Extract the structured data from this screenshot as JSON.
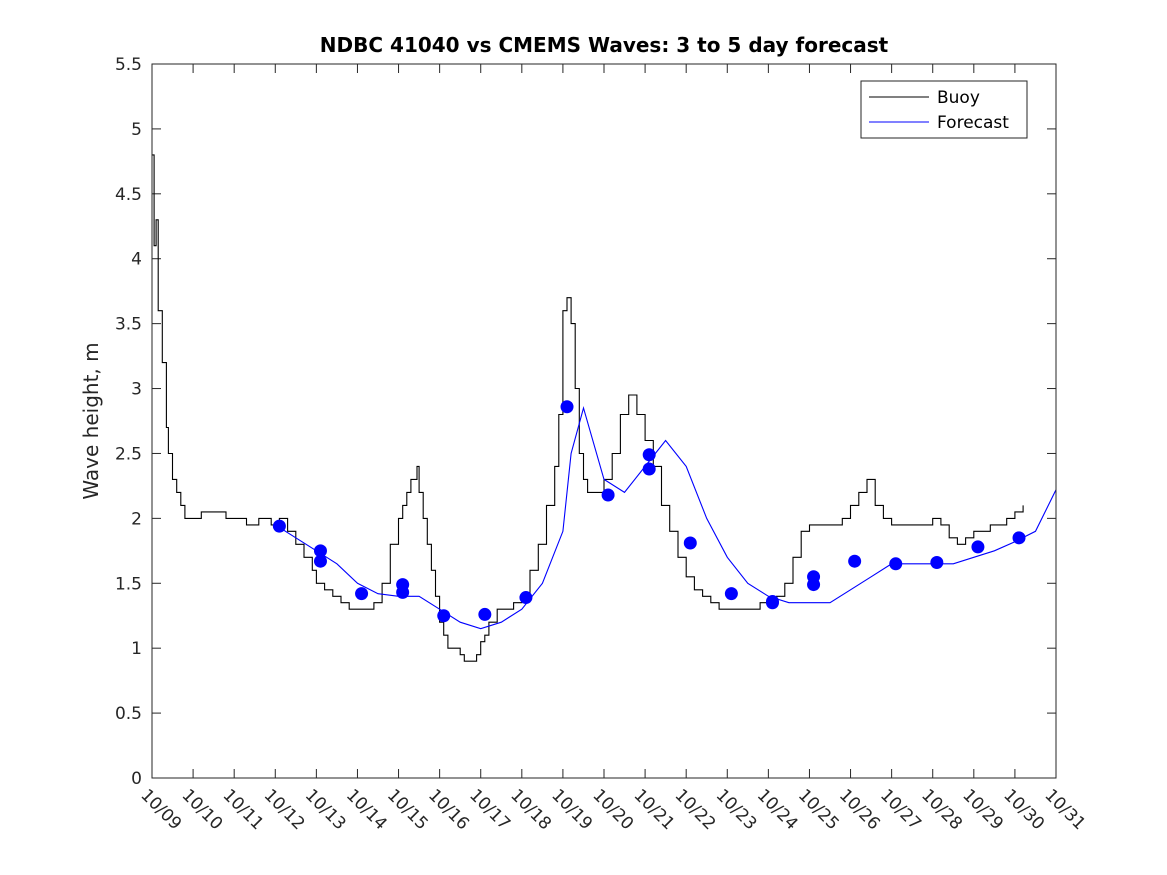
{
  "chart_data": {
    "type": "line",
    "title": "NDBC 41040 vs CMEMS Waves: 3 to 5 day forecast",
    "xlabel": "",
    "ylabel": "Wave height, m",
    "xlim": [
      0,
      22
    ],
    "ylim": [
      0,
      5.5
    ],
    "x_tick_labels": [
      "10/09",
      "10/10",
      "10/11",
      "10/12",
      "10/13",
      "10/14",
      "10/15",
      "10/16",
      "10/17",
      "10/18",
      "10/19",
      "10/20",
      "10/21",
      "10/22",
      "10/23",
      "10/24",
      "10/25",
      "10/26",
      "10/27",
      "10/28",
      "10/29",
      "10/30",
      "10/31"
    ],
    "y_ticks": [
      "0",
      "0.5",
      "1",
      "1.5",
      "2",
      "2.5",
      "3",
      "3.5",
      "4",
      "4.5",
      "5",
      "5.5"
    ],
    "legend": {
      "position": "top-right",
      "entries": [
        {
          "label": "Buoy",
          "color": "#000000"
        },
        {
          "label": "Forecast",
          "color": "#0000ff"
        }
      ]
    },
    "series": [
      {
        "name": "Buoy",
        "color": "#000000",
        "x": [
          0.0,
          0.05,
          0.1,
          0.15,
          0.25,
          0.35,
          0.4,
          0.5,
          0.6,
          0.7,
          0.8,
          1.0,
          1.2,
          1.5,
          1.8,
          2.0,
          2.3,
          2.6,
          2.9,
          3.1,
          3.3,
          3.5,
          3.7,
          3.9,
          4.0,
          4.2,
          4.4,
          4.6,
          4.8,
          5.0,
          5.2,
          5.4,
          5.6,
          5.8,
          6.0,
          6.1,
          6.2,
          6.3,
          6.45,
          6.5,
          6.6,
          6.7,
          6.8,
          6.9,
          7.0,
          7.1,
          7.2,
          7.3,
          7.4,
          7.5,
          7.6,
          7.7,
          7.8,
          7.9,
          8.0,
          8.1,
          8.2,
          8.4,
          8.6,
          8.8,
          9.0,
          9.2,
          9.4,
          9.6,
          9.8,
          9.9,
          10.0,
          10.1,
          10.2,
          10.3,
          10.4,
          10.5,
          10.6,
          10.8,
          11.0,
          11.2,
          11.4,
          11.6,
          11.8,
          12.0,
          12.2,
          12.4,
          12.6,
          12.8,
          13.0,
          13.2,
          13.4,
          13.6,
          13.8,
          14.0,
          14.2,
          14.4,
          14.6,
          14.8,
          15.0,
          15.2,
          15.4,
          15.6,
          15.8,
          16.0,
          16.2,
          16.4,
          16.6,
          16.8,
          17.0,
          17.2,
          17.4,
          17.6,
          17.8,
          18.0,
          18.2,
          18.4,
          18.6,
          18.8,
          19.0,
          19.2,
          19.4,
          19.6,
          19.8,
          20.0,
          20.2,
          20.4,
          20.6,
          20.8,
          21.0,
          21.2
        ],
        "y": [
          4.8,
          4.1,
          4.3,
          3.6,
          3.2,
          2.7,
          2.5,
          2.3,
          2.2,
          2.1,
          2.0,
          2.0,
          2.05,
          2.05,
          2.0,
          2.0,
          1.95,
          2.0,
          1.95,
          2.0,
          1.9,
          1.8,
          1.7,
          1.6,
          1.5,
          1.45,
          1.4,
          1.35,
          1.3,
          1.3,
          1.3,
          1.35,
          1.5,
          1.8,
          2.0,
          2.1,
          2.2,
          2.3,
          2.4,
          2.2,
          2.0,
          1.8,
          1.6,
          1.4,
          1.2,
          1.1,
          1.0,
          1.0,
          1.0,
          0.95,
          0.9,
          0.9,
          0.9,
          0.95,
          1.05,
          1.1,
          1.2,
          1.3,
          1.3,
          1.35,
          1.4,
          1.6,
          1.8,
          2.1,
          2.4,
          2.8,
          3.6,
          3.7,
          3.5,
          3.0,
          2.5,
          2.3,
          2.2,
          2.2,
          2.3,
          2.5,
          2.8,
          2.95,
          2.8,
          2.6,
          2.4,
          2.1,
          1.9,
          1.7,
          1.55,
          1.45,
          1.4,
          1.35,
          1.3,
          1.3,
          1.3,
          1.3,
          1.3,
          1.35,
          1.35,
          1.4,
          1.5,
          1.7,
          1.9,
          1.95,
          1.95,
          1.95,
          1.95,
          2.0,
          2.1,
          2.2,
          2.3,
          2.1,
          2.0,
          1.95,
          1.95,
          1.95,
          1.95,
          1.95,
          2.0,
          1.95,
          1.85,
          1.8,
          1.85,
          1.9,
          1.9,
          1.95,
          1.95,
          2.0,
          2.05,
          2.1
        ]
      },
      {
        "name": "Forecast",
        "color": "#0000ff",
        "x": [
          3.0,
          3.5,
          4.0,
          4.5,
          5.0,
          5.5,
          6.0,
          6.5,
          7.0,
          7.5,
          8.0,
          8.5,
          9.0,
          9.5,
          10.0,
          10.2,
          10.5,
          11.0,
          11.5,
          12.0,
          12.5,
          13.0,
          13.5,
          14.0,
          14.5,
          15.0,
          15.5,
          16.0,
          16.5,
          17.0,
          17.5,
          18.0,
          18.5,
          19.0,
          19.5,
          20.0,
          20.5,
          21.0,
          21.5,
          22.0
        ],
        "y": [
          1.95,
          1.85,
          1.75,
          1.65,
          1.5,
          1.42,
          1.4,
          1.4,
          1.3,
          1.2,
          1.15,
          1.2,
          1.3,
          1.5,
          1.9,
          2.5,
          2.85,
          2.3,
          2.2,
          2.4,
          2.6,
          2.4,
          2.0,
          1.7,
          1.5,
          1.4,
          1.35,
          1.35,
          1.35,
          1.45,
          1.55,
          1.65,
          1.65,
          1.65,
          1.65,
          1.7,
          1.75,
          1.82,
          1.9,
          2.22
        ]
      }
    ],
    "forecast_markers": {
      "x": [
        3.1,
        4.1,
        4.1,
        5.1,
        6.1,
        6.1,
        7.1,
        8.1,
        9.1,
        10.1,
        11.1,
        12.1,
        12.1,
        13.1,
        14.1,
        15.1,
        15.1,
        16.1,
        16.1,
        17.1,
        18.1,
        19.1,
        20.1,
        21.1
      ],
      "y": [
        1.94,
        1.75,
        1.67,
        1.42,
        1.49,
        1.43,
        1.25,
        1.26,
        1.39,
        2.86,
        2.18,
        2.49,
        2.38,
        1.81,
        1.42,
        1.35,
        1.36,
        1.55,
        1.49,
        1.67,
        1.65,
        1.66,
        1.78,
        1.85
      ]
    }
  }
}
